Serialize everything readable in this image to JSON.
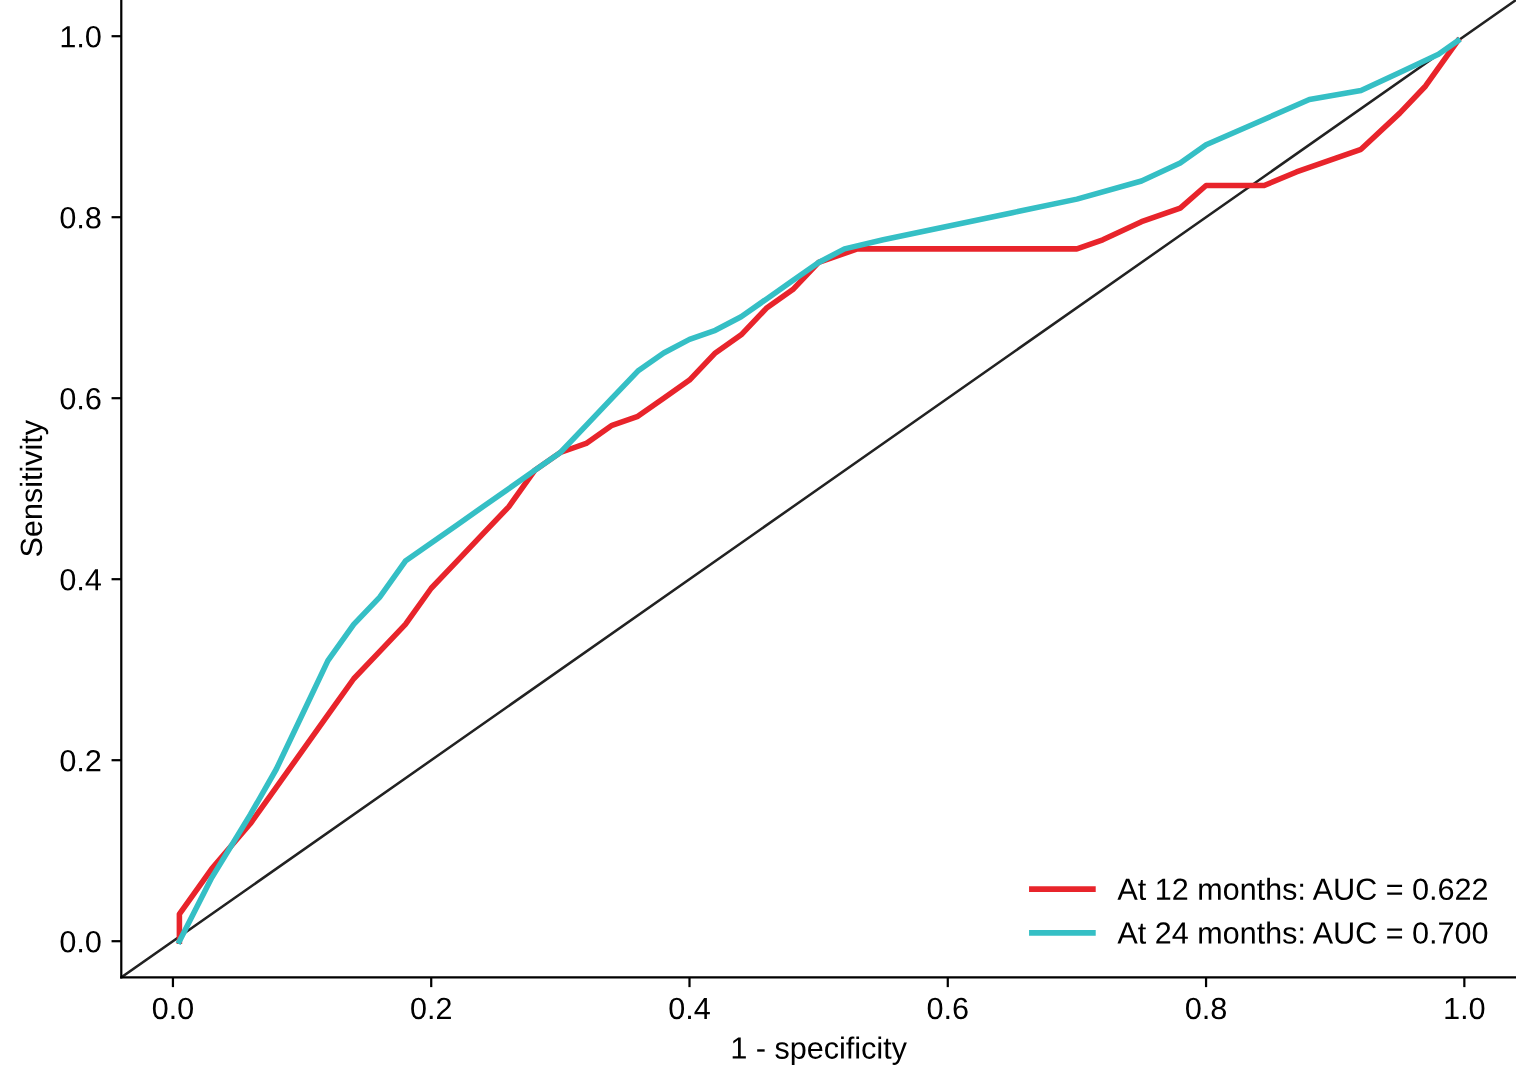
{
  "chart_data": {
    "type": "line",
    "xlabel": "1 - specificity",
    "ylabel": "Sensitivity",
    "xlim": [
      -0.04,
      1.04
    ],
    "ylim": [
      -0.04,
      1.04
    ],
    "xticks": [
      {
        "value": 0,
        "label": "0.0"
      },
      0.2,
      0.4,
      0.6,
      0.8,
      {
        "value": 1,
        "label": "1.0"
      }
    ],
    "yticks": [
      {
        "value": 0,
        "label": "0.0"
      },
      0.2,
      0.4,
      0.6,
      0.8,
      {
        "value": 1,
        "label": "1.0"
      }
    ],
    "grid": false,
    "legend": "bottom right",
    "marker": "none",
    "line_style": "solid",
    "series": [
      {
        "name": "At 12 months: AUC = 0.622",
        "color": "#e8242b",
        "x": [
          0.005,
          0.005,
          0.03,
          0.06,
          0.08,
          0.1,
          0.12,
          0.14,
          0.16,
          0.18,
          0.2,
          0.22,
          0.24,
          0.26,
          0.28,
          0.3,
          0.32,
          0.34,
          0.36,
          0.38,
          0.4,
          0.42,
          0.44,
          0.46,
          0.48,
          0.5,
          0.53,
          0.6,
          0.7,
          0.72,
          0.75,
          0.78,
          0.8,
          0.845,
          0.87,
          0.9,
          0.92,
          0.95,
          0.97,
          0.995
        ],
        "values": [
          0.0,
          0.03,
          0.08,
          0.13,
          0.17,
          0.21,
          0.25,
          0.29,
          0.32,
          0.35,
          0.39,
          0.42,
          0.45,
          0.48,
          0.52,
          0.54,
          0.55,
          0.57,
          0.58,
          0.6,
          0.62,
          0.65,
          0.67,
          0.7,
          0.72,
          0.75,
          0.765,
          0.765,
          0.765,
          0.775,
          0.795,
          0.81,
          0.835,
          0.835,
          0.85,
          0.865,
          0.875,
          0.915,
          0.945,
          0.995
        ]
      },
      {
        "name": "At 24 months: AUC = 0.700",
        "color": "#35bfc5",
        "x": [
          0.005,
          0.03,
          0.06,
          0.08,
          0.1,
          0.12,
          0.14,
          0.16,
          0.18,
          0.2,
          0.22,
          0.24,
          0.26,
          0.28,
          0.3,
          0.32,
          0.34,
          0.36,
          0.38,
          0.4,
          0.42,
          0.44,
          0.46,
          0.48,
          0.5,
          0.52,
          0.55,
          0.6,
          0.65,
          0.7,
          0.75,
          0.78,
          0.8,
          0.84,
          0.88,
          0.92,
          0.95,
          0.98,
          0.995
        ],
        "values": [
          0.0,
          0.07,
          0.14,
          0.19,
          0.25,
          0.31,
          0.35,
          0.38,
          0.42,
          0.44,
          0.46,
          0.48,
          0.5,
          0.52,
          0.54,
          0.57,
          0.6,
          0.63,
          0.65,
          0.665,
          0.675,
          0.69,
          0.71,
          0.73,
          0.75,
          0.765,
          0.775,
          0.79,
          0.805,
          0.82,
          0.84,
          0.86,
          0.88,
          0.905,
          0.93,
          0.94,
          0.96,
          0.98,
          0.995
        ]
      },
      {
        "color": "#222222",
        "x": [
          -0.04,
          1.04
        ],
        "values": [
          -0.04,
          1.04
        ]
      }
    ]
  }
}
